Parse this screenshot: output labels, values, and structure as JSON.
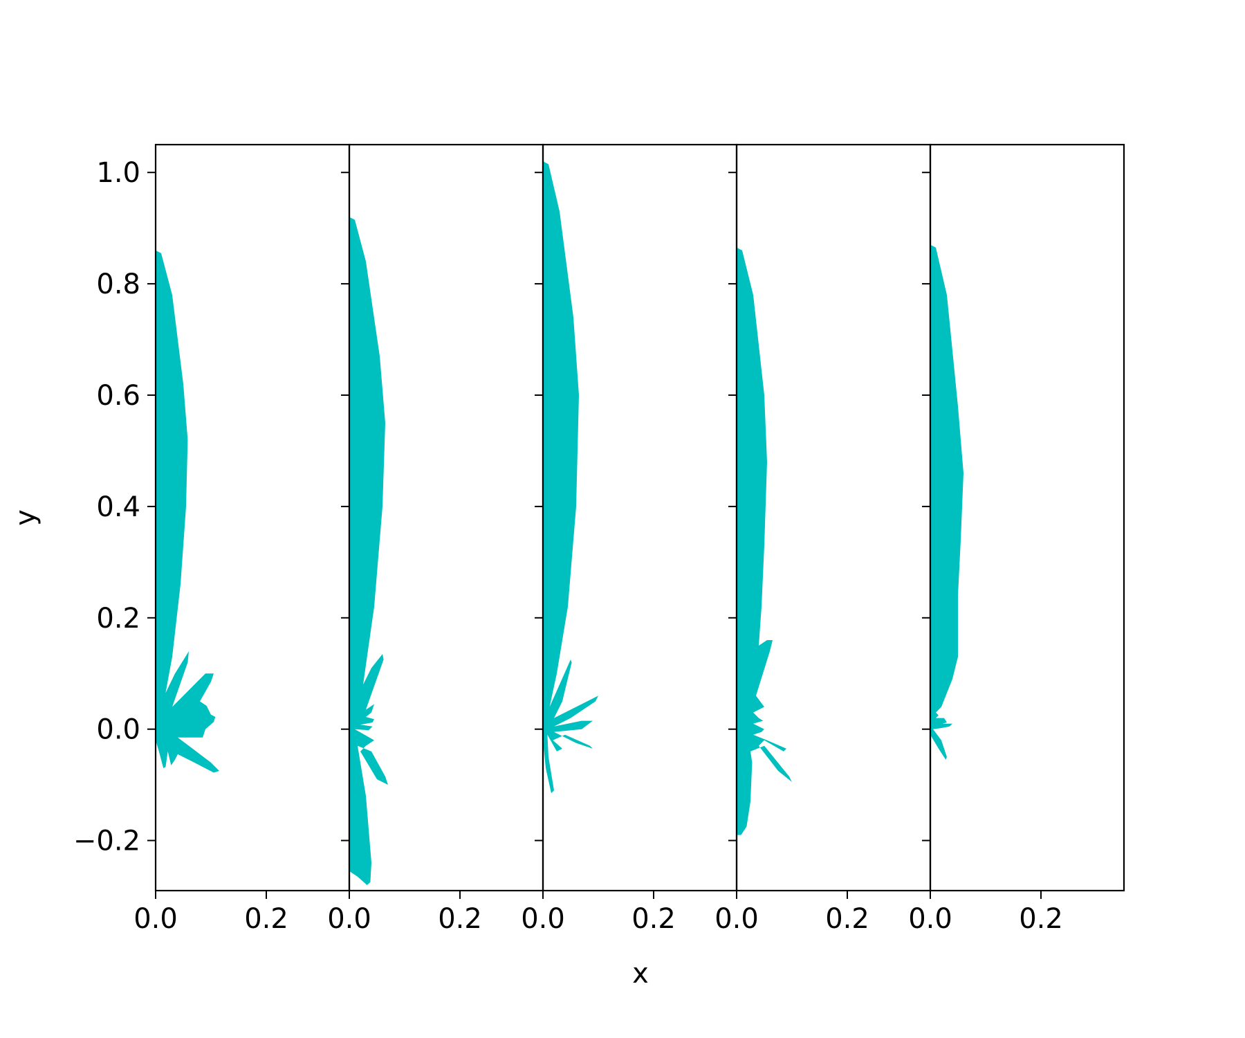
{
  "chart_data": {
    "type": "area",
    "xlabel": "x",
    "ylabel": "y",
    "ylim": [
      -0.29,
      1.05
    ],
    "xlim": [
      0.0,
      0.35
    ],
    "grid": false,
    "fill_color": "#00bfbf",
    "yticks": [
      {
        "value": -0.2,
        "label": "−0.2"
      },
      {
        "value": 0.0,
        "label": "0.0"
      },
      {
        "value": 0.2,
        "label": "0.2"
      },
      {
        "value": 0.4,
        "label": "0.4"
      },
      {
        "value": 0.6,
        "label": "0.6"
      },
      {
        "value": 0.8,
        "label": "0.8"
      },
      {
        "value": 1.0,
        "label": "1.0"
      }
    ],
    "xticks": [
      {
        "value": 0.0,
        "label": "0.0"
      },
      {
        "value": 0.2,
        "label": "0.2"
      }
    ],
    "panels": [
      {
        "shape": [
          [
            0,
            0
          ],
          [
            0,
            0.86
          ],
          [
            0.01,
            0.855
          ],
          [
            0.03,
            0.78
          ],
          [
            0.05,
            0.62
          ],
          [
            0.058,
            0.52
          ],
          [
            0.055,
            0.4
          ],
          [
            0.045,
            0.26
          ],
          [
            0.03,
            0.13
          ],
          [
            0.018,
            0.065
          ],
          [
            0.035,
            0.1
          ],
          [
            0.06,
            0.14
          ],
          [
            0.058,
            0.12
          ],
          [
            0.03,
            0.04
          ],
          [
            0.06,
            0.07
          ],
          [
            0.09,
            0.1
          ],
          [
            0.105,
            0.1
          ],
          [
            0.1,
            0.085
          ],
          [
            0.08,
            0.05
          ],
          [
            0.092,
            0.042
          ],
          [
            0.1,
            0.026
          ],
          [
            0.108,
            0.022
          ],
          [
            0.105,
            0.013
          ],
          [
            0.09,
            0
          ],
          [
            0.085,
            -0.015
          ],
          [
            0.04,
            -0.015
          ],
          [
            0.06,
            -0.03
          ],
          [
            0.1,
            -0.06
          ],
          [
            0.115,
            -0.075
          ],
          [
            0.105,
            -0.078
          ],
          [
            0.07,
            -0.06
          ],
          [
            0.04,
            -0.045
          ],
          [
            0.035,
            -0.055
          ],
          [
            0.028,
            -0.065
          ],
          [
            0.022,
            -0.04
          ],
          [
            0.018,
            -0.068
          ],
          [
            0.014,
            -0.07
          ],
          [
            0.006,
            -0.04
          ],
          [
            0,
            -0.02
          ]
        ]
      },
      {
        "shape": [
          [
            0,
            0
          ],
          [
            0,
            0.92
          ],
          [
            0.01,
            0.915
          ],
          [
            0.03,
            0.84
          ],
          [
            0.055,
            0.67
          ],
          [
            0.065,
            0.55
          ],
          [
            0.06,
            0.4
          ],
          [
            0.045,
            0.22
          ],
          [
            0.025,
            0.08
          ],
          [
            0.04,
            0.11
          ],
          [
            0.06,
            0.135
          ],
          [
            0.062,
            0.125
          ],
          [
            0.03,
            0.035
          ],
          [
            0.045,
            0.045
          ],
          [
            0.04,
            0.03
          ],
          [
            0.03,
            0.022
          ],
          [
            0.045,
            0.018
          ],
          [
            0.042,
            0.012
          ],
          [
            0.02,
            0.008
          ],
          [
            0.042,
            0.005
          ],
          [
            0.035,
            -0.002
          ],
          [
            0.01,
            0
          ],
          [
            0.045,
            -0.02
          ],
          [
            0.03,
            -0.03
          ],
          [
            0.02,
            -0.04
          ],
          [
            0.05,
            -0.09
          ],
          [
            0.07,
            -0.1
          ],
          [
            0.065,
            -0.085
          ],
          [
            0.04,
            -0.04
          ],
          [
            0.015,
            -0.03
          ],
          [
            0.03,
            -0.12
          ],
          [
            0.04,
            -0.24
          ],
          [
            0.038,
            -0.275
          ],
          [
            0.032,
            -0.28
          ],
          [
            0.015,
            -0.265
          ],
          [
            0,
            -0.255
          ]
        ]
      },
      {
        "shape": [
          [
            0,
            0
          ],
          [
            0,
            1.02
          ],
          [
            0.01,
            1.015
          ],
          [
            0.03,
            0.93
          ],
          [
            0.055,
            0.74
          ],
          [
            0.065,
            0.6
          ],
          [
            0.06,
            0.4
          ],
          [
            0.045,
            0.22
          ],
          [
            0.025,
            0.1
          ],
          [
            0.012,
            0.04
          ],
          [
            0.03,
            0.08
          ],
          [
            0.05,
            0.125
          ],
          [
            0.052,
            0.12
          ],
          [
            0.035,
            0.05
          ],
          [
            0.02,
            0.02
          ],
          [
            0.06,
            0.04
          ],
          [
            0.1,
            0.06
          ],
          [
            0.095,
            0.05
          ],
          [
            0.05,
            0.02
          ],
          [
            0.02,
            0.005
          ],
          [
            0.07,
            0.015
          ],
          [
            0.09,
            0.015
          ],
          [
            0.07,
            0
          ],
          [
            0.02,
            -0.005
          ],
          [
            0.06,
            -0.025
          ],
          [
            0.09,
            -0.035
          ],
          [
            0.085,
            -0.03
          ],
          [
            0.04,
            -0.01
          ],
          [
            0.018,
            -0.02
          ],
          [
            0.035,
            -0.035
          ],
          [
            0.025,
            -0.04
          ],
          [
            0.008,
            -0.01
          ],
          [
            0.01,
            -0.05
          ],
          [
            0.02,
            -0.11
          ],
          [
            0.015,
            -0.115
          ],
          [
            0.005,
            -0.07
          ],
          [
            0,
            -0.02
          ]
        ]
      },
      {
        "shape": [
          [
            0,
            0
          ],
          [
            0,
            0.865
          ],
          [
            0.01,
            0.86
          ],
          [
            0.03,
            0.78
          ],
          [
            0.05,
            0.6
          ],
          [
            0.055,
            0.48
          ],
          [
            0.05,
            0.33
          ],
          [
            0.045,
            0.22
          ],
          [
            0.04,
            0.15
          ],
          [
            0.055,
            0.16
          ],
          [
            0.065,
            0.16
          ],
          [
            0.06,
            0.14
          ],
          [
            0.035,
            0.06
          ],
          [
            0.05,
            0.04
          ],
          [
            0.03,
            0.03
          ],
          [
            0.04,
            0.02
          ],
          [
            0.048,
            0.015
          ],
          [
            0.03,
            0.01
          ],
          [
            0.05,
            0
          ],
          [
            0.045,
            -0.005
          ],
          [
            0.03,
            -0.01
          ],
          [
            0.055,
            -0.02
          ],
          [
            0.09,
            -0.035
          ],
          [
            0.085,
            -0.04
          ],
          [
            0.05,
            -0.02
          ],
          [
            0.04,
            -0.03
          ],
          [
            0.075,
            -0.075
          ],
          [
            0.1,
            -0.095
          ],
          [
            0.095,
            -0.085
          ],
          [
            0.05,
            -0.03
          ],
          [
            0.025,
            -0.04
          ],
          [
            0.028,
            -0.06
          ],
          [
            0.025,
            -0.13
          ],
          [
            0.018,
            -0.175
          ],
          [
            0.008,
            -0.19
          ],
          [
            0,
            -0.19
          ]
        ]
      },
      {
        "shape": [
          [
            0,
            0
          ],
          [
            0,
            0.87
          ],
          [
            0.01,
            0.865
          ],
          [
            0.03,
            0.78
          ],
          [
            0.05,
            0.58
          ],
          [
            0.06,
            0.46
          ],
          [
            0.055,
            0.34
          ],
          [
            0.05,
            0.24
          ],
          [
            0.05,
            0.18
          ],
          [
            0.05,
            0.13
          ],
          [
            0.04,
            0.09
          ],
          [
            0.02,
            0.04
          ],
          [
            0.01,
            0.03
          ],
          [
            0.015,
            0.025
          ],
          [
            0.01,
            0.02
          ],
          [
            0.025,
            0.02
          ],
          [
            0.03,
            0.012
          ],
          [
            0.022,
            0.01
          ],
          [
            0.04,
            0.01
          ],
          [
            0.035,
            0.005
          ],
          [
            0.02,
            0.002
          ],
          [
            0.005,
            0
          ],
          [
            0.02,
            -0.02
          ],
          [
            0.03,
            -0.05
          ],
          [
            0.028,
            -0.055
          ],
          [
            0.015,
            -0.035
          ],
          [
            0,
            -0.01
          ]
        ]
      }
    ]
  }
}
